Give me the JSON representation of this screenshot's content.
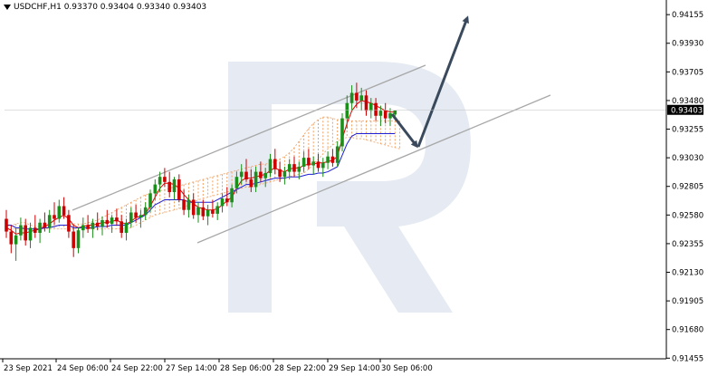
{
  "header": {
    "symbol": "USDCHF,H1",
    "ohlc": "0.93370 0.93404 0.93340 0.93403"
  },
  "current_price": "0.93403",
  "colors": {
    "bull": "#1a8f1a",
    "bear": "#cc0000",
    "tenkan": "#e00000",
    "kijun": "#1f1fd6",
    "cloud": "#f0a060",
    "cloud_alt": "#d99be0",
    "channel": "#a8a8a8",
    "arrow": "#3a4a5c",
    "watermark": "#e6ebf3",
    "price_tag": "#000000",
    "axis": "#000000"
  },
  "chart_data": {
    "type": "candlestick",
    "ylim": [
      0.9145,
      0.9427
    ],
    "y_ticks": [
      "0.94155",
      "0.93930",
      "0.93705",
      "0.93480",
      "0.93255",
      "0.93030",
      "0.92805",
      "0.92580",
      "0.92355",
      "0.92130",
      "0.91905",
      "0.91680",
      "0.91455"
    ],
    "x_ticks": [
      "23 Sep 2021",
      "24 Sep 06:00",
      "24 Sep 22:00",
      "27 Sep 14:00",
      "28 Sep 06:00",
      "28 Sep 22:00",
      "29 Sep 14:00",
      "30 Sep 06:00"
    ],
    "candles": [
      [
        0.9255,
        0.9262,
        0.924,
        0.9245
      ],
      [
        0.9245,
        0.925,
        0.9228,
        0.9235
      ],
      [
        0.9235,
        0.9248,
        0.9222,
        0.9242
      ],
      [
        0.9242,
        0.9256,
        0.9238,
        0.925
      ],
      [
        0.925,
        0.9255,
        0.9234,
        0.9238
      ],
      [
        0.9238,
        0.9252,
        0.9232,
        0.9248
      ],
      [
        0.9248,
        0.9258,
        0.924,
        0.9244
      ],
      [
        0.9244,
        0.9255,
        0.9236,
        0.9252
      ],
      [
        0.9252,
        0.926,
        0.9245,
        0.9248
      ],
      [
        0.9248,
        0.9262,
        0.9244,
        0.9258
      ],
      [
        0.9258,
        0.9268,
        0.925,
        0.9255
      ],
      [
        0.9255,
        0.927,
        0.9252,
        0.9265
      ],
      [
        0.9265,
        0.9272,
        0.9255,
        0.9258
      ],
      [
        0.9258,
        0.9262,
        0.924,
        0.9245
      ],
      [
        0.9245,
        0.925,
        0.9225,
        0.9232
      ],
      [
        0.9232,
        0.9248,
        0.9228,
        0.9246
      ],
      [
        0.9246,
        0.9256,
        0.924,
        0.925
      ],
      [
        0.925,
        0.9258,
        0.9244,
        0.9247
      ],
      [
        0.9247,
        0.9255,
        0.924,
        0.9252
      ],
      [
        0.9252,
        0.926,
        0.9246,
        0.9249
      ],
      [
        0.9249,
        0.9257,
        0.9242,
        0.9254
      ],
      [
        0.9254,
        0.9262,
        0.9248,
        0.9251
      ],
      [
        0.9251,
        0.9258,
        0.9244,
        0.9256
      ],
      [
        0.9256,
        0.9263,
        0.925,
        0.9253
      ],
      [
        0.9253,
        0.9258,
        0.924,
        0.9244
      ],
      [
        0.9244,
        0.9255,
        0.9238,
        0.9252
      ],
      [
        0.9252,
        0.9264,
        0.9248,
        0.926
      ],
      [
        0.926,
        0.9266,
        0.9252,
        0.9256
      ],
      [
        0.9256,
        0.9262,
        0.9248,
        0.9258
      ],
      [
        0.9258,
        0.9268,
        0.9254,
        0.9264
      ],
      [
        0.9264,
        0.9278,
        0.926,
        0.9275
      ],
      [
        0.9275,
        0.9286,
        0.927,
        0.9282
      ],
      [
        0.9282,
        0.9292,
        0.9276,
        0.9288
      ],
      [
        0.9288,
        0.9295,
        0.928,
        0.9284
      ],
      [
        0.9284,
        0.9292,
        0.9272,
        0.9276
      ],
      [
        0.9276,
        0.9288,
        0.927,
        0.9286
      ],
      [
        0.9286,
        0.929,
        0.9268,
        0.927
      ],
      [
        0.927,
        0.9278,
        0.9258,
        0.9262
      ],
      [
        0.9262,
        0.9274,
        0.9256,
        0.927
      ],
      [
        0.927,
        0.9275,
        0.9255,
        0.9258
      ],
      [
        0.9258,
        0.9268,
        0.9252,
        0.9264
      ],
      [
        0.9264,
        0.927,
        0.9254,
        0.9257
      ],
      [
        0.9257,
        0.9266,
        0.925,
        0.9262
      ],
      [
        0.9262,
        0.927,
        0.9256,
        0.9259
      ],
      [
        0.9259,
        0.9268,
        0.9254,
        0.9265
      ],
      [
        0.9265,
        0.9275,
        0.926,
        0.9271
      ],
      [
        0.9271,
        0.928,
        0.9265,
        0.9268
      ],
      [
        0.9268,
        0.9282,
        0.9264,
        0.9279
      ],
      [
        0.9279,
        0.9292,
        0.9275,
        0.9288
      ],
      [
        0.9288,
        0.9298,
        0.9282,
        0.9292
      ],
      [
        0.9292,
        0.9302,
        0.9284,
        0.9286
      ],
      [
        0.9286,
        0.9294,
        0.9276,
        0.928
      ],
      [
        0.928,
        0.9296,
        0.9276,
        0.9292
      ],
      [
        0.9292,
        0.93,
        0.9284,
        0.9287
      ],
      [
        0.9287,
        0.9295,
        0.928,
        0.9291
      ],
      [
        0.9291,
        0.9306,
        0.9288,
        0.9302
      ],
      [
        0.9302,
        0.931,
        0.929,
        0.9294
      ],
      [
        0.9294,
        0.93,
        0.9284,
        0.9288
      ],
      [
        0.9288,
        0.9296,
        0.9282,
        0.9292
      ],
      [
        0.9292,
        0.9302,
        0.9286,
        0.9298
      ],
      [
        0.9298,
        0.9304,
        0.9288,
        0.9292
      ],
      [
        0.9292,
        0.93,
        0.9286,
        0.9296
      ],
      [
        0.9296,
        0.9308,
        0.9292,
        0.9303
      ],
      [
        0.9303,
        0.931,
        0.9294,
        0.9297
      ],
      [
        0.9297,
        0.9304,
        0.929,
        0.93
      ],
      [
        0.93,
        0.9306,
        0.9292,
        0.9295
      ],
      [
        0.9295,
        0.9303,
        0.9288,
        0.9299
      ],
      [
        0.9299,
        0.9308,
        0.9294,
        0.9304
      ],
      [
        0.9304,
        0.931,
        0.9296,
        0.9299
      ],
      [
        0.9299,
        0.9316,
        0.9296,
        0.9312
      ],
      [
        0.9312,
        0.9338,
        0.9308,
        0.9334
      ],
      [
        0.9334,
        0.9352,
        0.9326,
        0.9346
      ],
      [
        0.9346,
        0.936,
        0.934,
        0.9354
      ],
      [
        0.9354,
        0.9362,
        0.9342,
        0.9348
      ],
      [
        0.9348,
        0.9358,
        0.934,
        0.9352
      ],
      [
        0.9352,
        0.9356,
        0.9336,
        0.934
      ],
      [
        0.934,
        0.935,
        0.9334,
        0.9346
      ],
      [
        0.9346,
        0.935,
        0.9332,
        0.9336
      ],
      [
        0.9336,
        0.9344,
        0.9328,
        0.934
      ],
      [
        0.934,
        0.9346,
        0.933,
        0.9334
      ],
      [
        0.9334,
        0.9342,
        0.9328,
        0.9338
      ],
      [
        0.9337,
        0.93404,
        0.9334,
        0.93403
      ]
    ],
    "tenkan": [
      0.9248,
      0.9246,
      0.9243,
      0.9244,
      0.9244,
      0.9245,
      0.9246,
      0.9247,
      0.9249,
      0.9251,
      0.9254,
      0.9256,
      0.9258,
      0.9255,
      0.925,
      0.9248,
      0.9249,
      0.925,
      0.925,
      0.9251,
      0.9252,
      0.9252,
      0.9253,
      0.9254,
      0.9252,
      0.9251,
      0.9253,
      0.9256,
      0.9257,
      0.9259,
      0.9265,
      0.9272,
      0.9279,
      0.9283,
      0.9283,
      0.9282,
      0.9279,
      0.9274,
      0.927,
      0.9267,
      0.9264,
      0.9263,
      0.9262,
      0.9262,
      0.9263,
      0.9266,
      0.9269,
      0.9272,
      0.9279,
      0.9285,
      0.9287,
      0.9287,
      0.9288,
      0.9289,
      0.929,
      0.9293,
      0.9295,
      0.9293,
      0.9292,
      0.9294,
      0.9295,
      0.9295,
      0.9297,
      0.9298,
      0.9298,
      0.9299,
      0.9299,
      0.93,
      0.9301,
      0.9304,
      0.9318,
      0.933,
      0.934,
      0.9345,
      0.9348,
      0.9347,
      0.9346,
      0.9344,
      0.9342,
      0.934,
      0.9339,
      0.9339
    ],
    "kijun": [
      0.925,
      0.925,
      0.9248,
      0.9248,
      0.9247,
      0.9247,
      0.9247,
      0.9247,
      0.9248,
      0.9248,
      0.9249,
      0.925,
      0.925,
      0.925,
      0.9248,
      0.9248,
      0.9248,
      0.9248,
      0.9248,
      0.9249,
      0.9249,
      0.9249,
      0.925,
      0.925,
      0.925,
      0.925,
      0.9252,
      0.9254,
      0.9256,
      0.9258,
      0.9262,
      0.9266,
      0.9268,
      0.927,
      0.927,
      0.927,
      0.927,
      0.927,
      0.9268,
      0.9268,
      0.9268,
      0.9268,
      0.9268,
      0.9268,
      0.927,
      0.9272,
      0.9274,
      0.9276,
      0.9278,
      0.928,
      0.9282,
      0.9282,
      0.9283,
      0.9284,
      0.9285,
      0.9286,
      0.9287,
      0.9287,
      0.9287,
      0.9288,
      0.9288,
      0.9288,
      0.9289,
      0.929,
      0.929,
      0.9291,
      0.9291,
      0.9292,
      0.9294,
      0.9296,
      0.9305,
      0.9314,
      0.932,
      0.9322,
      0.9322,
      0.9322,
      0.9322,
      0.9322,
      0.9322,
      0.9322,
      0.9322,
      0.9322
    ],
    "cloud": [
      {
        "a": 0.927,
        "b": 0.9262
      },
      {
        "a": 0.9265,
        "b": 0.9258
      },
      {
        "a": 0.9258,
        "b": 0.9255
      },
      {
        "a": 0.9252,
        "b": 0.9252
      },
      {
        "a": 0.925,
        "b": 0.9248
      },
      {
        "a": 0.9248,
        "b": 0.9246
      },
      {
        "a": 0.9247,
        "b": 0.9246
      },
      {
        "a": 0.9247,
        "b": 0.9246
      },
      {
        "a": 0.9248,
        "b": 0.9246
      },
      {
        "a": 0.9249,
        "b": 0.9246
      },
      {
        "a": 0.925,
        "b": 0.9247
      },
      {
        "a": 0.9251,
        "b": 0.9247
      },
      {
        "a": 0.9252,
        "b": 0.9247
      },
      {
        "a": 0.9252,
        "b": 0.9247
      },
      {
        "a": 0.925,
        "b": 0.9247
      },
      {
        "a": 0.9249,
        "b": 0.9247
      },
      {
        "a": 0.9249,
        "b": 0.9247
      },
      {
        "a": 0.9249,
        "b": 0.9247
      },
      {
        "a": 0.9249,
        "b": 0.9247
      },
      {
        "a": 0.9249,
        "b": 0.9247
      },
      {
        "a": 0.925,
        "b": 0.9247
      },
      {
        "a": 0.925,
        "b": 0.9247
      },
      {
        "a": 0.925,
        "b": 0.9247
      },
      {
        "a": 0.9251,
        "b": 0.9247
      },
      {
        "a": 0.9251,
        "b": 0.9247
      },
      {
        "a": 0.9251,
        "b": 0.9247
      },
      {
        "a": 0.9252,
        "b": 0.9247
      },
      {
        "a": 0.9253,
        "b": 0.9247
      },
      {
        "a": 0.9254,
        "b": 0.9247
      },
      {
        "a": 0.9256,
        "b": 0.9247
      },
      {
        "a": 0.9258,
        "b": 0.9247
      },
      {
        "a": 0.926,
        "b": 0.9247
      },
      {
        "a": 0.9262,
        "b": 0.9247
      },
      {
        "a": 0.9264,
        "b": 0.9247
      },
      {
        "a": 0.9266,
        "b": 0.9247
      },
      {
        "a": 0.9268,
        "b": 0.9248
      },
      {
        "a": 0.927,
        "b": 0.925
      },
      {
        "a": 0.9272,
        "b": 0.9252
      },
      {
        "a": 0.9274,
        "b": 0.9254
      },
      {
        "a": 0.9275,
        "b": 0.9256
      },
      {
        "a": 0.9276,
        "b": 0.9258
      },
      {
        "a": 0.9277,
        "b": 0.9259
      },
      {
        "a": 0.9278,
        "b": 0.926
      },
      {
        "a": 0.9279,
        "b": 0.9261
      },
      {
        "a": 0.928,
        "b": 0.9262
      },
      {
        "a": 0.9281,
        "b": 0.9263
      },
      {
        "a": 0.9282,
        "b": 0.9264
      },
      {
        "a": 0.9283,
        "b": 0.9266
      },
      {
        "a": 0.9284,
        "b": 0.9268
      },
      {
        "a": 0.9285,
        "b": 0.927
      },
      {
        "a": 0.9286,
        "b": 0.9271
      },
      {
        "a": 0.9287,
        "b": 0.9272
      },
      {
        "a": 0.9288,
        "b": 0.9273
      },
      {
        "a": 0.9289,
        "b": 0.9274
      },
      {
        "a": 0.929,
        "b": 0.9275
      },
      {
        "a": 0.9291,
        "b": 0.9276
      },
      {
        "a": 0.9292,
        "b": 0.9277
      },
      {
        "a": 0.9293,
        "b": 0.9278
      },
      {
        "a": 0.9294,
        "b": 0.9279
      },
      {
        "a": 0.9295,
        "b": 0.928
      },
      {
        "a": 0.9296,
        "b": 0.928
      },
      {
        "a": 0.9297,
        "b": 0.9281
      },
      {
        "a": 0.9298,
        "b": 0.9282
      },
      {
        "a": 0.9298,
        "b": 0.9283
      },
      {
        "a": 0.9299,
        "b": 0.9284
      },
      {
        "a": 0.93,
        "b": 0.9285
      },
      {
        "a": 0.9302,
        "b": 0.9286
      },
      {
        "a": 0.9304,
        "b": 0.9287
      },
      {
        "a": 0.9307,
        "b": 0.9288
      },
      {
        "a": 0.9311,
        "b": 0.9289
      },
      {
        "a": 0.9316,
        "b": 0.929
      },
      {
        "a": 0.9321,
        "b": 0.9291
      },
      {
        "a": 0.9326,
        "b": 0.9294
      },
      {
        "a": 0.933,
        "b": 0.9298
      },
      {
        "a": 0.9333,
        "b": 0.9302
      },
      {
        "a": 0.9335,
        "b": 0.9306
      },
      {
        "a": 0.9335,
        "b": 0.931
      },
      {
        "a": 0.9334,
        "b": 0.9313
      },
      {
        "a": 0.9333,
        "b": 0.9316
      },
      {
        "a": 0.9333,
        "b": 0.9318
      },
      {
        "a": 0.9333,
        "b": 0.9319
      },
      {
        "a": 0.9332,
        "b": 0.9319
      },
      {
        "a": 0.9332,
        "b": 0.9318
      },
      {
        "a": 0.9332,
        "b": 0.9318
      },
      {
        "a": 0.9332,
        "b": 0.9317
      },
      {
        "a": 0.9332,
        "b": 0.9316
      },
      {
        "a": 0.9332,
        "b": 0.9315
      },
      {
        "a": 0.9332,
        "b": 0.9314
      },
      {
        "a": 0.9332,
        "b": 0.9313
      },
      {
        "a": 0.9332,
        "b": 0.9312
      },
      {
        "a": 0.9332,
        "b": 0.9311
      },
      {
        "a": 0.9332,
        "b": 0.931
      }
    ]
  }
}
